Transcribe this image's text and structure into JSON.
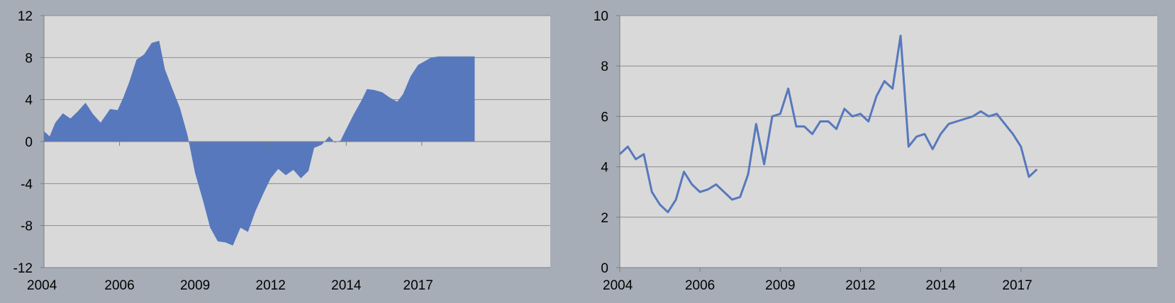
{
  "page": {
    "background": "#a6adb7"
  },
  "chart_data": [
    {
      "type": "area",
      "title": "",
      "xlabel": "",
      "ylabel": "",
      "xlim": [
        2004.0,
        2017.4
      ],
      "ylim": [
        -12,
        12
      ],
      "yticks": [
        -12,
        -8,
        -4,
        0,
        4,
        8,
        12
      ],
      "ytick_labels": [
        "-12",
        "-8",
        "-4",
        "0",
        "4",
        "8",
        "12"
      ],
      "xtick_labels": [
        {
          "label": "2004",
          "x": 2004.0
        },
        {
          "label": "2006",
          "x": 2006.0
        },
        {
          "label": "2009",
          "x": 2008.0
        },
        {
          "label": "2012",
          "x": 2010.0
        },
        {
          "label": "2014",
          "x": 2012.0
        },
        {
          "label": "2017",
          "x": 2014.0
        }
      ],
      "grid": true,
      "colors": {
        "plot_bg": "#d9d9d9",
        "fill": "#5778bd",
        "grid": "#8c8c8c"
      },
      "series": [
        {
          "x": [
            2004.0,
            2004.15,
            2004.3,
            2004.5,
            2004.7,
            2004.9,
            2005.1,
            2005.3,
            2005.5,
            2005.75,
            2005.95,
            2006.1,
            2006.25,
            2006.45,
            2006.65,
            2006.85,
            2007.05,
            2007.2,
            2007.4,
            2007.6,
            2007.8,
            2008.0,
            2008.2,
            2008.4,
            2008.6,
            2008.8,
            2009.0,
            2009.2,
            2009.4,
            2009.6,
            2009.8,
            2010.0,
            2010.2,
            2010.4,
            2010.6,
            2010.8,
            2011.0,
            2011.15,
            2011.35,
            2011.55,
            2011.7,
            2011.85,
            2012.0,
            2012.2,
            2012.4,
            2012.55,
            2012.75,
            2012.95,
            2013.15,
            2013.35,
            2013.5,
            2013.7,
            2013.9,
            2014.05,
            2014.25,
            2014.45,
            2014.6,
            2014.8,
            2015.0,
            2015.2,
            2015.4
          ],
          "values": [
            1.0,
            0.5,
            1.8,
            2.7,
            2.2,
            2.9,
            3.7,
            2.6,
            1.8,
            3.1,
            3.0,
            4.2,
            5.6,
            7.8,
            8.3,
            9.4,
            9.6,
            6.9,
            5.0,
            3.2,
            0.6,
            -3.0,
            -5.5,
            -8.2,
            -9.5,
            -9.6,
            -9.9,
            -8.2,
            -8.6,
            -6.6,
            -5.0,
            -3.5,
            -2.6,
            -3.2,
            -2.7,
            -3.5,
            -2.8,
            -0.6,
            -0.3,
            0.5,
            -0.1,
            0.1,
            1.2,
            2.6,
            3.9,
            5.0,
            4.9,
            4.7,
            4.2,
            3.8,
            4.5,
            6.2,
            7.3,
            7.6,
            8.0,
            8.1,
            8.1,
            8.1,
            8.1,
            8.1,
            8.1
          ]
        }
      ]
    },
    {
      "type": "line",
      "title": "",
      "xlabel": "",
      "ylabel": "",
      "xlim": [
        2004.0,
        2017.4
      ],
      "ylim": [
        0,
        10
      ],
      "yticks": [
        0,
        2,
        4,
        6,
        8,
        10
      ],
      "ytick_labels": [
        "0",
        "2",
        "4",
        "6",
        "8",
        "10"
      ],
      "xtick_labels": [
        {
          "label": "2004",
          "x": 2004.0
        },
        {
          "label": "2006",
          "x": 2006.0
        },
        {
          "label": "2009",
          "x": 2008.0
        },
        {
          "label": "2012",
          "x": 2010.0
        },
        {
          "label": "2014",
          "x": 2012.0
        },
        {
          "label": "2017",
          "x": 2014.0
        }
      ],
      "grid": true,
      "colors": {
        "plot_bg": "#d9d9d9",
        "line": "#5778bd",
        "grid": "#8c8c8c"
      },
      "series": [
        {
          "x": [
            2004.0,
            2004.2,
            2004.4,
            2004.6,
            2004.8,
            2005.0,
            2005.2,
            2005.4,
            2005.6,
            2005.8,
            2006.0,
            2006.2,
            2006.4,
            2006.6,
            2006.8,
            2007.0,
            2007.2,
            2007.4,
            2007.6,
            2007.8,
            2008.0,
            2008.2,
            2008.4,
            2008.6,
            2008.8,
            2009.0,
            2009.2,
            2009.4,
            2009.6,
            2009.8,
            2010.0,
            2010.2,
            2010.4,
            2010.6,
            2010.8,
            2011.0,
            2011.2,
            2011.4,
            2011.6,
            2011.8,
            2012.0,
            2012.2,
            2012.4,
            2012.6,
            2012.8,
            2013.0,
            2013.2,
            2013.4,
            2013.6,
            2013.8,
            2014.0,
            2014.2,
            2014.4
          ],
          "values": [
            4.5,
            4.8,
            4.3,
            4.5,
            3.0,
            2.5,
            2.2,
            2.7,
            3.8,
            3.3,
            3.0,
            3.1,
            3.3,
            3.0,
            2.7,
            2.8,
            3.7,
            5.7,
            4.1,
            6.0,
            6.1,
            7.1,
            5.6,
            5.6,
            5.3,
            5.8,
            5.8,
            5.5,
            6.3,
            6.0,
            6.1,
            5.8,
            6.8,
            7.4,
            7.1,
            9.2,
            4.8,
            5.2,
            5.3,
            4.7,
            5.3,
            5.7,
            5.8,
            5.9,
            6.0,
            6.2,
            6.0,
            6.1,
            5.7,
            5.3,
            4.8,
            3.6,
            3.9
          ]
        }
      ]
    }
  ]
}
